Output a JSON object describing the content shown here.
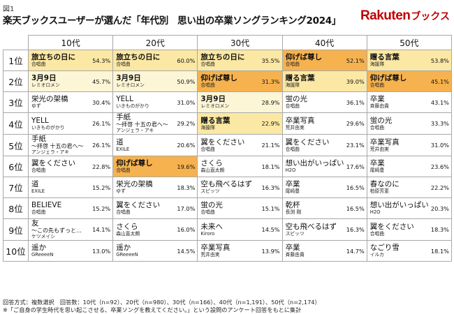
{
  "figure_label": "図1",
  "title": "楽天ブックスユーザーが選んだ「年代別　思い出の卒業ソングランキング2024」",
  "logo": {
    "main": "Rakuten",
    "sub": "ブックス"
  },
  "chart_data": {
    "type": "table",
    "columns": [
      "10代",
      "20代",
      "30代",
      "40代",
      "50代"
    ],
    "rank_labels": [
      "1位",
      "2位",
      "3位",
      "4位",
      "5位",
      "6位",
      "7位",
      "8位",
      "9位",
      "10位"
    ],
    "rows": [
      [
        {
          "song": "旅立ちの日に",
          "artist": "合唱曲",
          "pct": "54.3%",
          "hl": "hl1",
          "bold": true
        },
        {
          "song": "旅立ちの日に",
          "artist": "合唱曲",
          "pct": "60.0%",
          "hl": "hl1",
          "bold": true
        },
        {
          "song": "旅立ちの日に",
          "artist": "合唱曲",
          "pct": "35.5%",
          "hl": "hl1",
          "bold": true
        },
        {
          "song": "仰げば尊し",
          "artist": "合唱曲",
          "pct": "52.1%",
          "hl": "hl2",
          "bold": true
        },
        {
          "song": "贈る言葉",
          "artist": "海援隊",
          "pct": "53.8%",
          "hl": "hl1",
          "bold": true
        }
      ],
      [
        {
          "song": "3月9日",
          "artist": "レミオロメン",
          "pct": "45.7%",
          "hl": "hl3",
          "bold": true
        },
        {
          "song": "3月9日",
          "artist": "レミオロメン",
          "pct": "50.9%",
          "hl": "hl3",
          "bold": true
        },
        {
          "song": "仰げば尊し",
          "artist": "合唱曲",
          "pct": "31.3%",
          "hl": "hl2",
          "bold": true
        },
        {
          "song": "贈る言葉",
          "artist": "海援隊",
          "pct": "39.0%",
          "hl": "hl1",
          "bold": true
        },
        {
          "song": "仰げば尊し",
          "artist": "合唱曲",
          "pct": "45.1%",
          "hl": "hl2",
          "bold": true
        }
      ],
      [
        {
          "song": "栄光の架橋",
          "artist": "ゆず",
          "pct": "30.4%",
          "hl": "",
          "bold": false
        },
        {
          "song": "YELL",
          "artist": "いきものがかり",
          "pct": "31.0%",
          "hl": "",
          "bold": false
        },
        {
          "song": "3月9日",
          "artist": "レミオロメン",
          "pct": "28.9%",
          "hl": "hl3",
          "bold": true
        },
        {
          "song": "蛍の光",
          "artist": "合唱曲",
          "pct": "36.1%",
          "hl": "",
          "bold": false
        },
        {
          "song": "卒業",
          "artist": "斉藤由貴",
          "pct": "43.1%",
          "hl": "",
          "bold": false
        }
      ],
      [
        {
          "song": "YELL",
          "artist": "いきものがかり",
          "pct": "26.1%",
          "hl": "",
          "bold": false
        },
        {
          "song": "手紙",
          "song2": "〜拝啓 十五の君へ〜",
          "artist": "アンジェラ・アキ",
          "pct": "29.2%",
          "hl": "",
          "bold": false
        },
        {
          "song": "贈る言葉",
          "artist": "海援隊",
          "pct": "22.9%",
          "hl": "hl1",
          "bold": true
        },
        {
          "song": "卒業写真",
          "artist": "荒井由実",
          "pct": "29.6%",
          "hl": "",
          "bold": false
        },
        {
          "song": "蛍の光",
          "artist": "合唱曲",
          "pct": "33.3%",
          "hl": "",
          "bold": false
        }
      ],
      [
        {
          "song": "手紙",
          "song2": "〜拝啓 十五の君へ〜",
          "artist": "アンジェラ・アキ",
          "pct": "26.1%",
          "hl": "",
          "bold": false
        },
        {
          "song": "道",
          "artist": "EXILE",
          "pct": "20.6%",
          "hl": "",
          "bold": false
        },
        {
          "song": "翼をください",
          "artist": "合唱曲",
          "pct": "21.1%",
          "hl": "",
          "bold": false
        },
        {
          "song": "翼をください",
          "artist": "合唱曲",
          "pct": "23.1%",
          "hl": "",
          "bold": false
        },
        {
          "song": "卒業写真",
          "artist": "荒井由実",
          "pct": "31.0%",
          "hl": "",
          "bold": false
        }
      ],
      [
        {
          "song": "翼をください",
          "artist": "合唱曲",
          "pct": "22.8%",
          "hl": "",
          "bold": false
        },
        {
          "song": "仰げば尊し",
          "artist": "合唱曲",
          "pct": "19.6%",
          "hl": "hl2",
          "bold": true
        },
        {
          "song": "さくら",
          "artist": "森山直太朗",
          "pct": "18.1%",
          "hl": "",
          "bold": false
        },
        {
          "song": "想い出がいっぱい",
          "artist": "H2O",
          "pct": "17.6%",
          "hl": "",
          "bold": false
        },
        {
          "song": "卒業",
          "artist": "尾崎豊",
          "pct": "23.6%",
          "hl": "",
          "bold": false
        }
      ],
      [
        {
          "song": "道",
          "artist": "EXILE",
          "pct": "15.2%",
          "hl": "",
          "bold": false
        },
        {
          "song": "栄光の架橋",
          "artist": "ゆず",
          "pct": "18.3%",
          "hl": "",
          "bold": false
        },
        {
          "song": "空も飛べるはず",
          "artist": "スピッツ",
          "pct": "16.3%",
          "hl": "",
          "bold": false
        },
        {
          "song": "卒業",
          "artist": "尾崎豊",
          "pct": "16.5%",
          "hl": "",
          "bold": false
        },
        {
          "song": "春なのに",
          "artist": "柏原芳恵",
          "pct": "22.2%",
          "hl": "",
          "bold": false
        }
      ],
      [
        {
          "song": "BELIEVE",
          "artist": "合唱曲",
          "pct": "15.2%",
          "hl": "",
          "bold": false
        },
        {
          "song": "翼をください",
          "artist": "合唱曲",
          "pct": "17.0%",
          "hl": "",
          "bold": false
        },
        {
          "song": "蛍の光",
          "artist": "合唱曲",
          "pct": "15.1%",
          "hl": "",
          "bold": false
        },
        {
          "song": "乾杯",
          "artist": "長渕 剛",
          "pct": "16.5%",
          "hl": "",
          "bold": false
        },
        {
          "song": "想い出がいっぱい",
          "artist": "H2O",
          "pct": "20.3%",
          "hl": "",
          "bold": false
        }
      ],
      [
        {
          "song": "友",
          "song2": "〜この先もずっと…",
          "artist": "ケツメイシ",
          "pct": "14.1%",
          "hl": "",
          "bold": false
        },
        {
          "song": "さくら",
          "artist": "森山直太朗",
          "pct": "16.0%",
          "hl": "",
          "bold": false
        },
        {
          "song": "未来へ",
          "artist": "Kiroro",
          "pct": "14.5%",
          "hl": "",
          "bold": false
        },
        {
          "song": "空も飛べるはず",
          "artist": "スピッツ",
          "pct": "16.3%",
          "hl": "",
          "bold": false
        },
        {
          "song": "翼をください",
          "artist": "合唱曲",
          "pct": "18.3%",
          "hl": "",
          "bold": false
        }
      ],
      [
        {
          "song": "遥か",
          "artist": "GReeeeN",
          "pct": "13.0%",
          "hl": "",
          "bold": false
        },
        {
          "song": "遥か",
          "artist": "GReeeeN",
          "pct": "14.5%",
          "hl": "",
          "bold": false
        },
        {
          "song": "卒業写真",
          "artist": "荒井由実",
          "pct": "13.9%",
          "hl": "",
          "bold": false
        },
        {
          "song": "卒業",
          "artist": "斉藤由貴",
          "pct": "14.7%",
          "hl": "",
          "bold": false
        },
        {
          "song": "なごり雪",
          "artist": "イルカ",
          "pct": "18.1%",
          "hl": "",
          "bold": false
        }
      ]
    ]
  },
  "footnotes": {
    "line1": "回答方式：複数選択　回答数：10代（n=92）、20代（n=980）、30代（n=166）、40代（n=1,191）、50代（n=2,174）",
    "line2": "※「ご自身の学生時代を思い起こさせる、卒業ソングを教えてください。」という設問のアンケート回答をもとに集計"
  }
}
